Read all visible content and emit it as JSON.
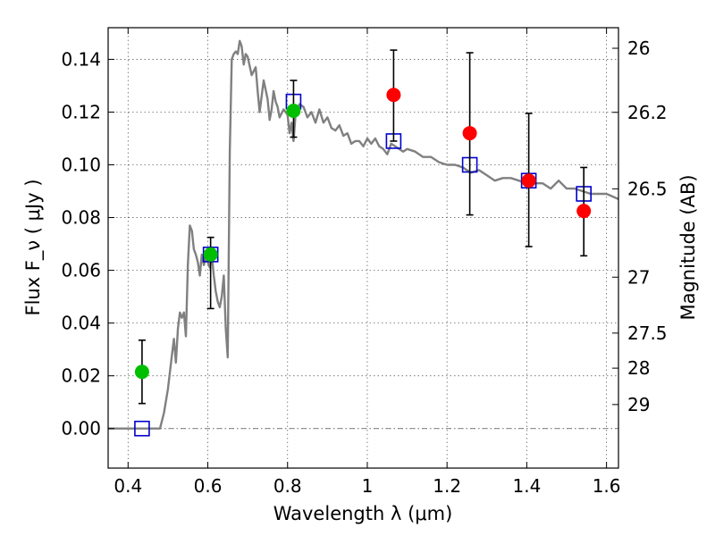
{
  "chart_data": {
    "type": "scatter",
    "xlabel": "Wavelength  λ (μm)",
    "ylabel": "Flux  F_ν  ( μJy )",
    "y2label": "Magnitude (AB)",
    "xlim": [
      0.35,
      1.63
    ],
    "ylim": [
      -0.015,
      0.152
    ],
    "grid": true,
    "x_ticks": [
      {
        "value": 0.4,
        "label": "0.4"
      },
      {
        "value": 0.6,
        "label": "0.6"
      },
      {
        "value": 0.8,
        "label": "0.8"
      },
      {
        "value": 1.0,
        "label": "1"
      },
      {
        "value": 1.2,
        "label": "1.2"
      },
      {
        "value": 1.4,
        "label": "1.4"
      },
      {
        "value": 1.6,
        "label": "1.6"
      }
    ],
    "y_ticks": [
      {
        "value": 0.0,
        "label": "0.00"
      },
      {
        "value": 0.02,
        "label": "0.02"
      },
      {
        "value": 0.04,
        "label": "0.04"
      },
      {
        "value": 0.06,
        "label": "0.06"
      },
      {
        "value": 0.08,
        "label": "0.08"
      },
      {
        "value": 0.1,
        "label": "0.10"
      },
      {
        "value": 0.12,
        "label": "0.12"
      },
      {
        "value": 0.14,
        "label": "0.14"
      }
    ],
    "mag_ticks": [
      {
        "flux": 0.1442,
        "label": "26"
      },
      {
        "flux": 0.1199,
        "label": "26.2"
      },
      {
        "flux": 0.0909,
        "label": "26.5"
      },
      {
        "flux": 0.0574,
        "label": "27"
      },
      {
        "flux": 0.0362,
        "label": "27.5"
      },
      {
        "flux": 0.0229,
        "label": "28"
      },
      {
        "flux": 0.0091,
        "label": "29"
      }
    ],
    "series": [
      {
        "marker": "line",
        "color": "#808080",
        "x": [
          0.35,
          0.48,
          0.49,
          0.5,
          0.51,
          0.515,
          0.52,
          0.525,
          0.53,
          0.535,
          0.54,
          0.545,
          0.55,
          0.555,
          0.56,
          0.565,
          0.57,
          0.575,
          0.58,
          0.585,
          0.59,
          0.595,
          0.6,
          0.605,
          0.61,
          0.615,
          0.62,
          0.625,
          0.63,
          0.635,
          0.64,
          0.645,
          0.65,
          0.655,
          0.66,
          0.665,
          0.67,
          0.675,
          0.68,
          0.685,
          0.69,
          0.695,
          0.7,
          0.71,
          0.72,
          0.725,
          0.73,
          0.74,
          0.75,
          0.755,
          0.76,
          0.765,
          0.77,
          0.775,
          0.78,
          0.79,
          0.8,
          0.805,
          0.81,
          0.815,
          0.82,
          0.83,
          0.84,
          0.85,
          0.86,
          0.87,
          0.88,
          0.89,
          0.9,
          0.91,
          0.92,
          0.93,
          0.94,
          0.95,
          0.96,
          0.97,
          0.98,
          0.99,
          1.0,
          1.01,
          1.02,
          1.03,
          1.04,
          1.05,
          1.06,
          1.07,
          1.08,
          1.09,
          1.1,
          1.12,
          1.14,
          1.16,
          1.18,
          1.2,
          1.22,
          1.24,
          1.26,
          1.28,
          1.3,
          1.32,
          1.34,
          1.36,
          1.38,
          1.4,
          1.42,
          1.44,
          1.46,
          1.48,
          1.5,
          1.52,
          1.54,
          1.56,
          1.58,
          1.6,
          1.63
        ],
        "y": [
          0.0,
          0.0,
          0.006,
          0.015,
          0.028,
          0.034,
          0.025,
          0.038,
          0.044,
          0.042,
          0.044,
          0.035,
          0.062,
          0.077,
          0.075,
          0.068,
          0.066,
          0.063,
          0.058,
          0.066,
          0.062,
          0.065,
          0.063,
          0.061,
          0.066,
          0.058,
          0.052,
          0.048,
          0.046,
          0.05,
          0.058,
          0.038,
          0.027,
          0.105,
          0.14,
          0.142,
          0.143,
          0.142,
          0.147,
          0.145,
          0.138,
          0.142,
          0.141,
          0.134,
          0.137,
          0.128,
          0.12,
          0.132,
          0.125,
          0.117,
          0.121,
          0.128,
          0.124,
          0.122,
          0.118,
          0.121,
          0.119,
          0.112,
          0.116,
          0.109,
          0.119,
          0.123,
          0.122,
          0.118,
          0.12,
          0.116,
          0.121,
          0.116,
          0.118,
          0.114,
          0.113,
          0.115,
          0.111,
          0.112,
          0.108,
          0.109,
          0.109,
          0.107,
          0.11,
          0.108,
          0.11,
          0.107,
          0.106,
          0.104,
          0.108,
          0.107,
          0.106,
          0.105,
          0.106,
          0.105,
          0.103,
          0.103,
          0.101,
          0.1,
          0.1,
          0.099,
          0.097,
          0.098,
          0.096,
          0.094,
          0.095,
          0.095,
          0.094,
          0.093,
          0.093,
          0.093,
          0.091,
          0.094,
          0.091,
          0.091,
          0.09,
          0.089,
          0.089,
          0.089,
          0.087
        ]
      },
      {
        "marker": "hollow-square",
        "color": "#0000cc",
        "x": [
          0.435,
          0.607,
          0.815,
          1.066,
          1.257,
          1.405,
          1.543
        ],
        "y": [
          0.0,
          0.066,
          0.124,
          0.109,
          0.1,
          0.094,
          0.089
        ]
      },
      {
        "marker": "filled-circle",
        "color": "#00bf00",
        "x": [
          0.435,
          0.607,
          0.815
        ],
        "y": [
          0.0215,
          0.066,
          0.1205
        ],
        "yerr_low": [
          0.0095,
          0.0455,
          0.1105
        ],
        "yerr_high": [
          0.0335,
          0.0725,
          0.132
        ]
      },
      {
        "marker": "filled-circle",
        "color": "#ff0000",
        "x": [
          1.066,
          1.257,
          1.405,
          1.543
        ],
        "y": [
          0.1265,
          0.112,
          0.094,
          0.0825
        ],
        "yerr_low": [
          0.109,
          0.081,
          0.069,
          0.0655
        ],
        "yerr_high": [
          0.1435,
          0.1425,
          0.1195,
          0.099
        ]
      }
    ]
  }
}
